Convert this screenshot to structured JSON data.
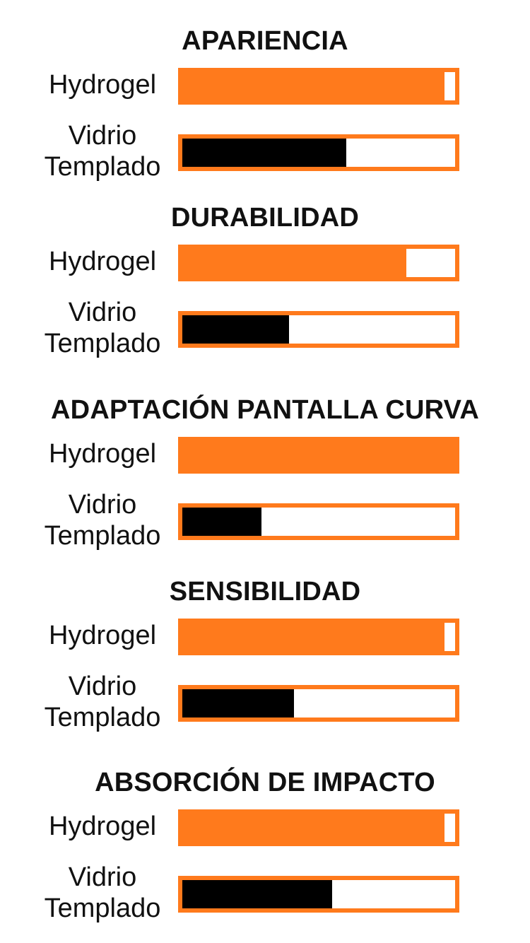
{
  "chart_data": {
    "type": "bar",
    "orientation": "horizontal",
    "xlim": [
      0,
      100
    ],
    "grid": false,
    "colors": {
      "Hydrogel": "#ff7a1c",
      "Vidrio Templado": "#000000",
      "border": "#ff7a1c"
    },
    "groups": [
      {
        "title": "APARIENCIA",
        "items": [
          {
            "label": "Hydrogel",
            "value": 96
          },
          {
            "label": "Vidrio Templado",
            "value": 60
          }
        ]
      },
      {
        "title": "DURABILIDAD",
        "items": [
          {
            "label": "Hydrogel",
            "value": 82
          },
          {
            "label": "Vidrio Templado",
            "value": 39
          }
        ]
      },
      {
        "title": "ADAPTACIÓN PANTALLA CURVA",
        "items": [
          {
            "label": "Hydrogel",
            "value": 100
          },
          {
            "label": "Vidrio Templado",
            "value": 29
          }
        ]
      },
      {
        "title": "SENSIBILIDAD",
        "items": [
          {
            "label": "Hydrogel",
            "value": 96
          },
          {
            "label": "Vidrio Templado",
            "value": 41
          }
        ]
      },
      {
        "title": "ABSORCIÓN DE IMPACTO",
        "items": [
          {
            "label": "Hydrogel",
            "value": 96
          },
          {
            "label": "Vidrio Templado",
            "value": 55
          }
        ]
      }
    ]
  }
}
